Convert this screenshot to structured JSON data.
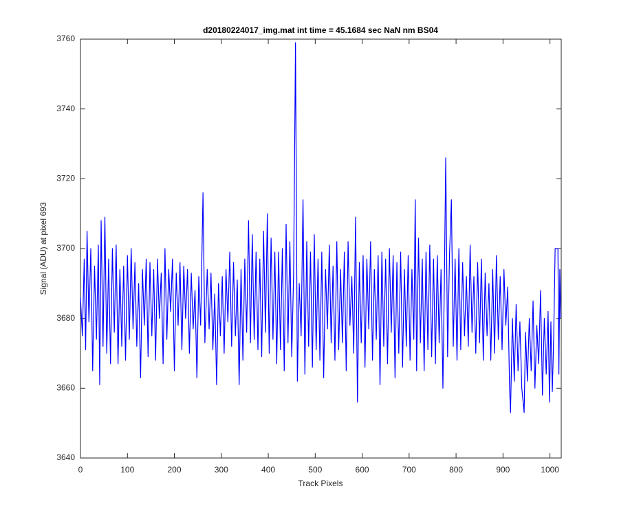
{
  "chart_data": {
    "type": "line",
    "title": "d20180224017_img.mat int time = 45.1684 sec  NaN nm BS04",
    "x_label": "Track Pixels",
    "y_label": "Signal (ADU) at pixel 693",
    "xlim": [
      0,
      1024
    ],
    "ylim": [
      3640,
      3760
    ],
    "xticks": [
      0,
      100,
      200,
      300,
      400,
      500,
      600,
      700,
      800,
      900,
      1000
    ],
    "yticks": [
      3640,
      3660,
      3680,
      3700,
      3720,
      3740,
      3760
    ],
    "grid": false,
    "x": [
      0,
      4,
      8,
      11,
      14,
      18,
      22,
      26,
      30,
      34,
      38,
      41,
      44,
      48,
      52,
      56,
      60,
      64,
      68,
      72,
      76,
      80,
      84,
      88,
      92,
      96,
      100,
      104,
      108,
      112,
      116,
      120,
      124,
      128,
      132,
      136,
      140,
      144,
      148,
      152,
      156,
      160,
      164,
      168,
      172,
      176,
      180,
      184,
      188,
      192,
      196,
      200,
      204,
      208,
      212,
      216,
      220,
      224,
      228,
      232,
      236,
      240,
      244,
      248,
      252,
      256,
      261,
      265,
      270,
      274,
      278,
      282,
      286,
      290,
      294,
      298,
      302,
      306,
      310,
      314,
      318,
      322,
      326,
      330,
      334,
      338,
      342,
      346,
      350,
      354,
      358,
      362,
      366,
      370,
      374,
      378,
      382,
      386,
      390,
      394,
      398,
      402,
      406,
      410,
      414,
      418,
      422,
      426,
      430,
      434,
      438,
      442,
      446,
      450,
      454,
      458,
      462,
      466,
      470,
      474,
      478,
      482,
      486,
      490,
      494,
      498,
      502,
      506,
      510,
      514,
      518,
      522,
      526,
      530,
      534,
      538,
      542,
      546,
      550,
      554,
      558,
      562,
      566,
      570,
      574,
      578,
      582,
      586,
      590,
      594,
      598,
      602,
      606,
      610,
      614,
      618,
      622,
      626,
      630,
      634,
      638,
      642,
      646,
      650,
      654,
      658,
      662,
      666,
      670,
      674,
      678,
      682,
      686,
      690,
      694,
      698,
      702,
      706,
      710,
      713,
      716,
      720,
      724,
      728,
      732,
      736,
      740,
      744,
      748,
      752,
      756,
      760,
      764,
      768,
      772,
      775,
      778,
      782,
      786,
      790,
      794,
      798,
      802,
      806,
      810,
      814,
      818,
      822,
      826,
      830,
      834,
      838,
      842,
      846,
      850,
      854,
      858,
      862,
      866,
      870,
      874,
      878,
      882,
      886,
      890,
      894,
      898,
      902,
      906,
      910,
      914,
      916,
      920,
      924,
      928,
      932,
      936,
      940,
      945,
      948,
      952,
      956,
      960,
      964,
      968,
      972,
      976,
      980,
      984,
      988,
      992,
      996,
      999,
      1002,
      1005,
      1008,
      1011,
      1017,
      1019,
      1021,
      1023
    ],
    "series": [
      {
        "color": "#0000ff",
        "values": [
          3686,
          3675,
          3697,
          3671,
          3705,
          3679,
          3700,
          3665,
          3695,
          3674,
          3701,
          3661,
          3708,
          3672,
          3709,
          3670,
          3697,
          3667,
          3700,
          3676,
          3701,
          3667,
          3694,
          3672,
          3695,
          3668,
          3698,
          3674,
          3700,
          3677,
          3696,
          3672,
          3690,
          3663,
          3694,
          3678,
          3697,
          3669,
          3696,
          3675,
          3694,
          3668,
          3697,
          3680,
          3693,
          3667,
          3700,
          3674,
          3694,
          3682,
          3697,
          3665,
          3693,
          3678,
          3696,
          3671,
          3695,
          3680,
          3694,
          3670,
          3693,
          3677,
          3688,
          3663,
          3692,
          3678,
          3716,
          3673,
          3694,
          3677,
          3693,
          3671,
          3687,
          3661,
          3690,
          3675,
          3692,
          3670,
          3694,
          3679,
          3699,
          3672,
          3696,
          3675,
          3691,
          3661,
          3694,
          3668,
          3697,
          3676,
          3708,
          3673,
          3704,
          3674,
          3699,
          3671,
          3697,
          3669,
          3705,
          3676,
          3710,
          3670,
          3703,
          3674,
          3699,
          3667,
          3699,
          3671,
          3700,
          3665,
          3707,
          3673,
          3702,
          3669,
          3693,
          3759,
          3662,
          3690,
          3675,
          3714,
          3664,
          3702,
          3672,
          3699,
          3666,
          3704,
          3671,
          3697,
          3668,
          3699,
          3663,
          3694,
          3677,
          3701,
          3673,
          3695,
          3668,
          3702,
          3671,
          3694,
          3673,
          3699,
          3665,
          3702,
          3678,
          3692,
          3670,
          3709,
          3656,
          3696,
          3673,
          3698,
          3666,
          3697,
          3677,
          3702,
          3668,
          3694,
          3674,
          3698,
          3661,
          3699,
          3672,
          3697,
          3667,
          3700,
          3676,
          3698,
          3663,
          3696,
          3670,
          3699,
          3666,
          3694,
          3672,
          3698,
          3668,
          3694,
          3674,
          3714,
          3665,
          3703,
          3673,
          3697,
          3665,
          3699,
          3671,
          3701,
          3669,
          3697,
          3667,
          3698,
          3673,
          3694,
          3660,
          3690,
          3726,
          3669,
          3698,
          3714,
          3672,
          3697,
          3668,
          3700,
          3671,
          3696,
          3675,
          3692,
          3672,
          3701,
          3676,
          3692,
          3670,
          3696,
          3673,
          3697,
          3668,
          3693,
          3675,
          3690,
          3668,
          3694,
          3670,
          3698,
          3674,
          3692,
          3671,
          3694,
          3678,
          3689,
          3660,
          3653,
          3680,
          3662,
          3684,
          3665,
          3679,
          3660,
          3653,
          3676,
          3662,
          3680,
          3665,
          3685,
          3660,
          3678,
          3667,
          3688,
          3658,
          3680,
          3664,
          3682,
          3656,
          3679,
          3659,
          3675,
          3700,
          3700,
          3664,
          3694,
          3680
        ]
      }
    ]
  }
}
